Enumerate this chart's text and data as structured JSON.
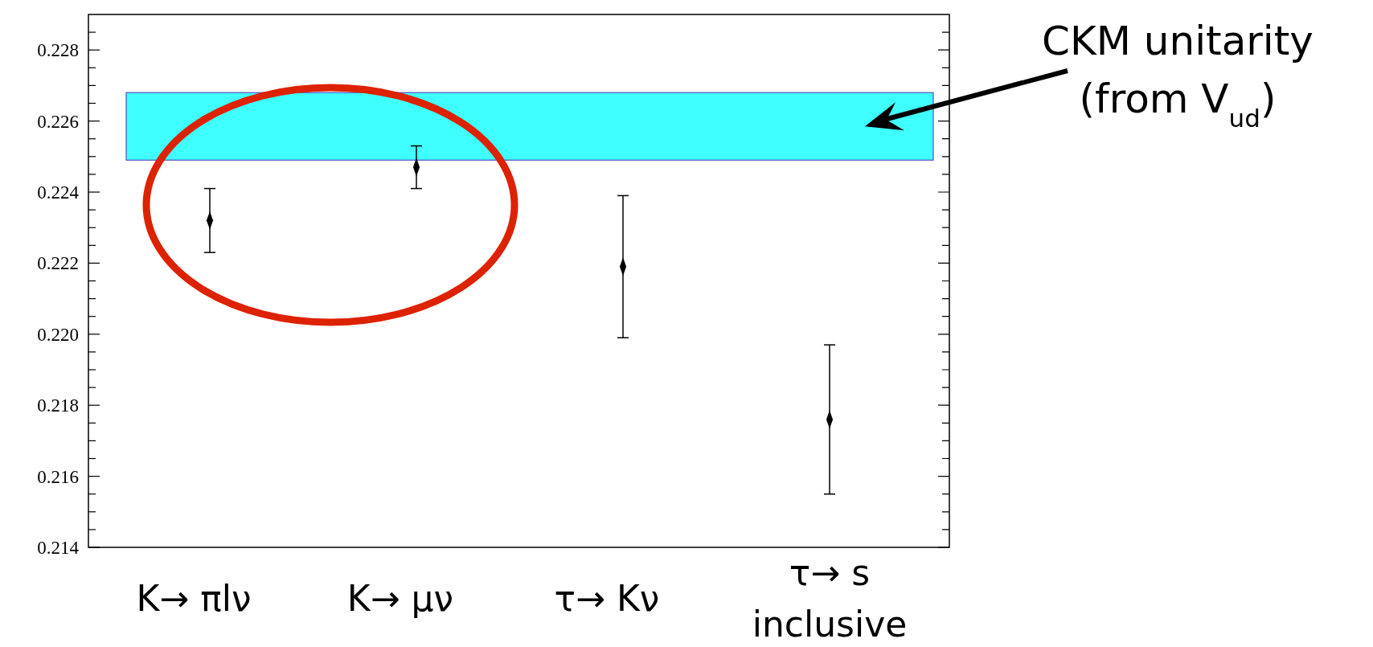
{
  "chart_data": {
    "type": "scatter",
    "categories": [
      "K→ πlν",
      "K→ μν",
      "τ→ Kν",
      "τ→ s\ninclusive"
    ],
    "series": [
      {
        "color": "#000000",
        "values": [
          0.2232,
          0.2247,
          0.2219,
          0.2176
        ],
        "errors": [
          0.0009,
          0.0006,
          0.002,
          0.0021
        ]
      }
    ],
    "marker": "diamond",
    "ylim": [
      0.214,
      0.229
    ],
    "yticks": [
      0.214,
      {
        "value": 0.2145,
        "label": null
      },
      {
        "value": 0.215,
        "label": null
      },
      {
        "value": 0.2155,
        "label": null
      },
      0.216,
      {
        "value": 0.2165,
        "label": null
      },
      {
        "value": 0.217,
        "label": null
      },
      {
        "value": 0.2175,
        "label": null
      },
      0.218,
      {
        "value": 0.2185,
        "label": null
      },
      {
        "value": 0.219,
        "label": null
      },
      {
        "value": 0.2195,
        "label": null
      },
      {
        "value": 0.22,
        "label": "0.220"
      },
      {
        "value": 0.2205,
        "label": null
      },
      {
        "value": 0.221,
        "label": null
      },
      {
        "value": 0.2215,
        "label": null
      },
      0.222,
      {
        "value": 0.2225,
        "label": null
      },
      {
        "value": 0.223,
        "label": null
      },
      {
        "value": 0.2235,
        "label": null
      },
      0.224,
      {
        "value": 0.2245,
        "label": null
      },
      {
        "value": 0.225,
        "label": null
      },
      {
        "value": 0.2255,
        "label": null
      },
      0.226,
      {
        "value": 0.2265,
        "label": null
      },
      {
        "value": 0.227,
        "label": null
      },
      {
        "value": 0.2275,
        "label": null
      },
      0.228,
      {
        "value": 0.2285,
        "label": null
      }
    ],
    "bands": [
      {
        "axis": "y",
        "from": 0.2249,
        "to": 0.2268,
        "color": "#40ffff",
        "label": "CKM unitarity\n(from V$_{ud}$)"
      }
    ]
  }
}
